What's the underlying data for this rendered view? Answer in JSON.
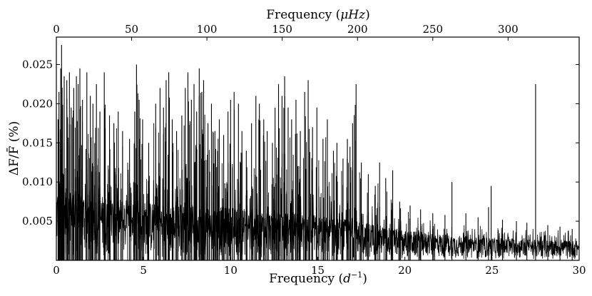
{
  "chart_data": {
    "type": "line",
    "title": "",
    "xlabel": "Frequency (d⁻¹)",
    "x_unit": "d⁻¹",
    "ylabel": "ΔF/F̄ (%)",
    "secondary_xlabel": "Frequency (μHz)",
    "secondary_x_unit": "μHz",
    "xlim": [
      0,
      30
    ],
    "ylim": [
      0,
      0.0285
    ],
    "secondary_xlim": [
      0,
      347.2
    ],
    "x_ticks": [
      0,
      5,
      10,
      15,
      20,
      25,
      30
    ],
    "y_ticks": [
      0.005,
      0.01,
      0.015,
      0.02,
      0.025
    ],
    "y_tick_labels": [
      "0.005",
      "0.010",
      "0.015",
      "0.020",
      "0.025"
    ],
    "secondary_x_ticks": [
      0,
      50,
      100,
      150,
      200,
      250,
      300
    ],
    "grid": false,
    "legend": "none",
    "line_color": "#000000",
    "series": [
      {
        "values_description": "amplitude spectrum",
        "noise_envelope": [
          [
            0,
            0.0095
          ],
          [
            2,
            0.0085
          ],
          [
            5,
            0.0075
          ],
          [
            10,
            0.0068
          ],
          [
            15,
            0.0058
          ],
          [
            18,
            0.0048
          ],
          [
            20,
            0.0038
          ],
          [
            24,
            0.003
          ],
          [
            27,
            0.0027
          ],
          [
            30,
            0.0025
          ]
        ],
        "peaks": [
          [
            0.1,
            0.018
          ],
          [
            0.15,
            0.0215
          ],
          [
            0.25,
            0.0245
          ],
          [
            0.3,
            0.0275
          ],
          [
            0.45,
            0.0235
          ],
          [
            0.6,
            0.023
          ],
          [
            0.75,
            0.024
          ],
          [
            0.85,
            0.0195
          ],
          [
            1.0,
            0.022
          ],
          [
            1.15,
            0.0235
          ],
          [
            1.25,
            0.0225
          ],
          [
            1.35,
            0.0245
          ],
          [
            1.5,
            0.0205
          ],
          [
            1.75,
            0.024
          ],
          [
            1.95,
            0.021
          ],
          [
            2.1,
            0.02
          ],
          [
            2.3,
            0.0225
          ],
          [
            2.5,
            0.019
          ],
          [
            2.75,
            0.024
          ],
          [
            3.05,
            0.0185
          ],
          [
            3.3,
            0.0175
          ],
          [
            3.55,
            0.019
          ],
          [
            3.8,
            0.0165
          ],
          [
            4.2,
            0.0155
          ],
          [
            4.5,
            0.019
          ],
          [
            4.6,
            0.025
          ],
          [
            4.75,
            0.0205
          ],
          [
            4.95,
            0.018
          ],
          [
            5.3,
            0.015
          ],
          [
            5.7,
            0.02
          ],
          [
            5.95,
            0.022
          ],
          [
            6.15,
            0.0195
          ],
          [
            6.3,
            0.023
          ],
          [
            6.45,
            0.024
          ],
          [
            6.65,
            0.018
          ],
          [
            6.9,
            0.0165
          ],
          [
            7.2,
            0.0185
          ],
          [
            7.4,
            0.022
          ],
          [
            7.55,
            0.024
          ],
          [
            7.75,
            0.0205
          ],
          [
            7.9,
            0.0225
          ],
          [
            8.05,
            0.019
          ],
          [
            8.2,
            0.0245
          ],
          [
            8.35,
            0.0215
          ],
          [
            8.45,
            0.023
          ],
          [
            8.7,
            0.0175
          ],
          [
            8.9,
            0.02
          ],
          [
            9.1,
            0.0165
          ],
          [
            9.35,
            0.018
          ],
          [
            9.6,
            0.016
          ],
          [
            9.85,
            0.019
          ],
          [
            10.0,
            0.0205
          ],
          [
            10.2,
            0.0215
          ],
          [
            10.45,
            0.02
          ],
          [
            10.65,
            0.0165
          ],
          [
            10.9,
            0.014
          ],
          [
            11.2,
            0.0175
          ],
          [
            11.45,
            0.021
          ],
          [
            11.65,
            0.02
          ],
          [
            11.9,
            0.018
          ],
          [
            12.1,
            0.0165
          ],
          [
            12.4,
            0.015
          ],
          [
            12.55,
            0.0195
          ],
          [
            12.75,
            0.0225
          ],
          [
            12.95,
            0.021
          ],
          [
            13.1,
            0.0235
          ],
          [
            13.3,
            0.0195
          ],
          [
            13.5,
            0.018
          ],
          [
            13.75,
            0.0205
          ],
          [
            14.0,
            0.0165
          ],
          [
            14.25,
            0.0215
          ],
          [
            14.45,
            0.023
          ],
          [
            14.7,
            0.017
          ],
          [
            14.95,
            0.0195
          ],
          [
            15.3,
            0.0155
          ],
          [
            15.55,
            0.018
          ],
          [
            15.9,
            0.014
          ],
          [
            16.1,
            0.015
          ],
          [
            16.45,
            0.013
          ],
          [
            16.7,
            0.0155
          ],
          [
            16.85,
            0.0145
          ],
          [
            17.0,
            0.0175
          ],
          [
            17.2,
            0.0225
          ],
          [
            17.5,
            0.0125
          ],
          [
            17.9,
            0.011
          ],
          [
            18.3,
            0.0095
          ],
          [
            18.55,
            0.0125
          ],
          [
            18.9,
            0.0105
          ],
          [
            19.3,
            0.0115
          ],
          [
            19.7,
            0.0075
          ],
          [
            20.3,
            0.007
          ],
          [
            20.9,
            0.0065
          ],
          [
            21.6,
            0.006
          ],
          [
            22.3,
            0.0058
          ],
          [
            22.7,
            0.01
          ],
          [
            23.5,
            0.006
          ],
          [
            24.2,
            0.0055
          ],
          [
            24.8,
            0.0068
          ],
          [
            24.95,
            0.0095
          ],
          [
            25.6,
            0.0052
          ],
          [
            26.4,
            0.005
          ],
          [
            27.0,
            0.0048
          ],
          [
            27.5,
            0.0225
          ],
          [
            28.2,
            0.0045
          ],
          [
            28.9,
            0.0043
          ],
          [
            29.6,
            0.004
          ]
        ]
      }
    ]
  },
  "labels": {
    "xlabel_main": "Frequency (",
    "xlabel_d": "d",
    "xlabel_exp": "−1",
    "xlabel_close": ")",
    "secondary_main": "Frequency (",
    "secondary_unit": "μHz",
    "secondary_close": ")",
    "ylabel": "ΔF/F̄ (%)"
  }
}
